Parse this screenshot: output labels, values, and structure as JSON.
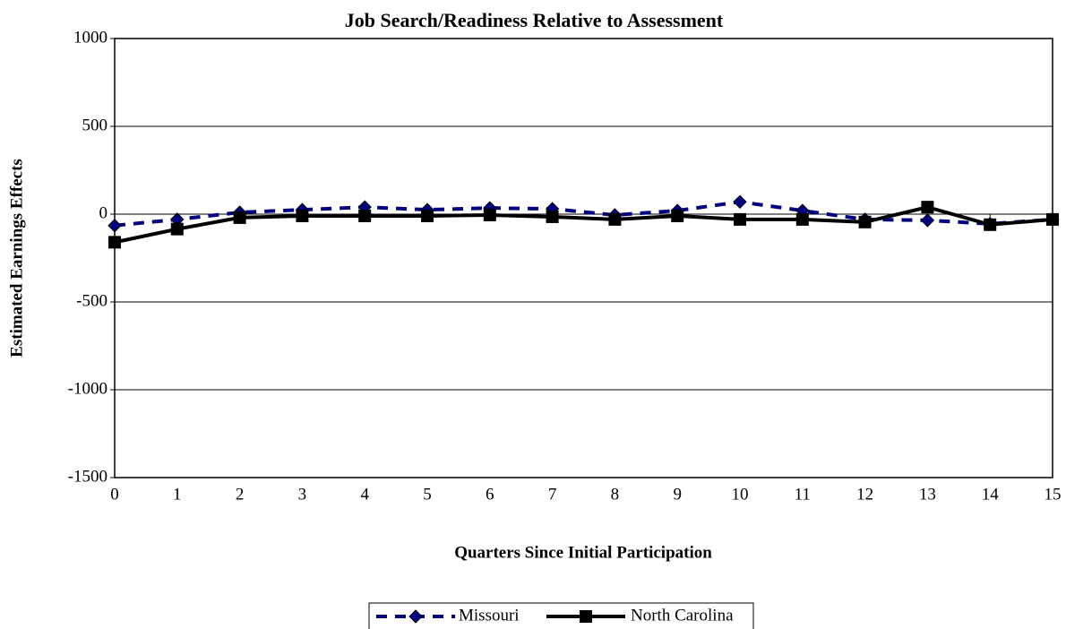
{
  "chart_data": {
    "type": "line",
    "title": "Job Search/Readiness Relative to Assessment",
    "x_label": "Quarters Since Initial Participation",
    "y_label": "Estimated Earnings Effects",
    "x": [
      0,
      1,
      2,
      3,
      4,
      5,
      6,
      7,
      8,
      9,
      10,
      11,
      12,
      13,
      14,
      15
    ],
    "xlim": [
      0,
      15
    ],
    "xticks": [
      0,
      1,
      2,
      3,
      4,
      5,
      6,
      7,
      8,
      9,
      10,
      11,
      12,
      13,
      14,
      15
    ],
    "ylim": [
      -1500,
      1000
    ],
    "yticks": [
      -1500,
      -1000,
      -500,
      0,
      500,
      1000
    ],
    "grid": true,
    "legend": "bottom",
    "series": [
      {
        "name": "Missouri",
        "color": "#000080",
        "values": [
          -65,
          -30,
          10,
          25,
          40,
          25,
          35,
          30,
          -5,
          20,
          70,
          20,
          -30,
          -35,
          -55,
          -30
        ]
      },
      {
        "name": "North Carolina",
        "color": "#000000",
        "values": [
          -160,
          -85,
          -20,
          -10,
          -10,
          -10,
          -5,
          -15,
          -30,
          -10,
          -30,
          -30,
          -45,
          40,
          -60,
          -30
        ]
      }
    ]
  }
}
